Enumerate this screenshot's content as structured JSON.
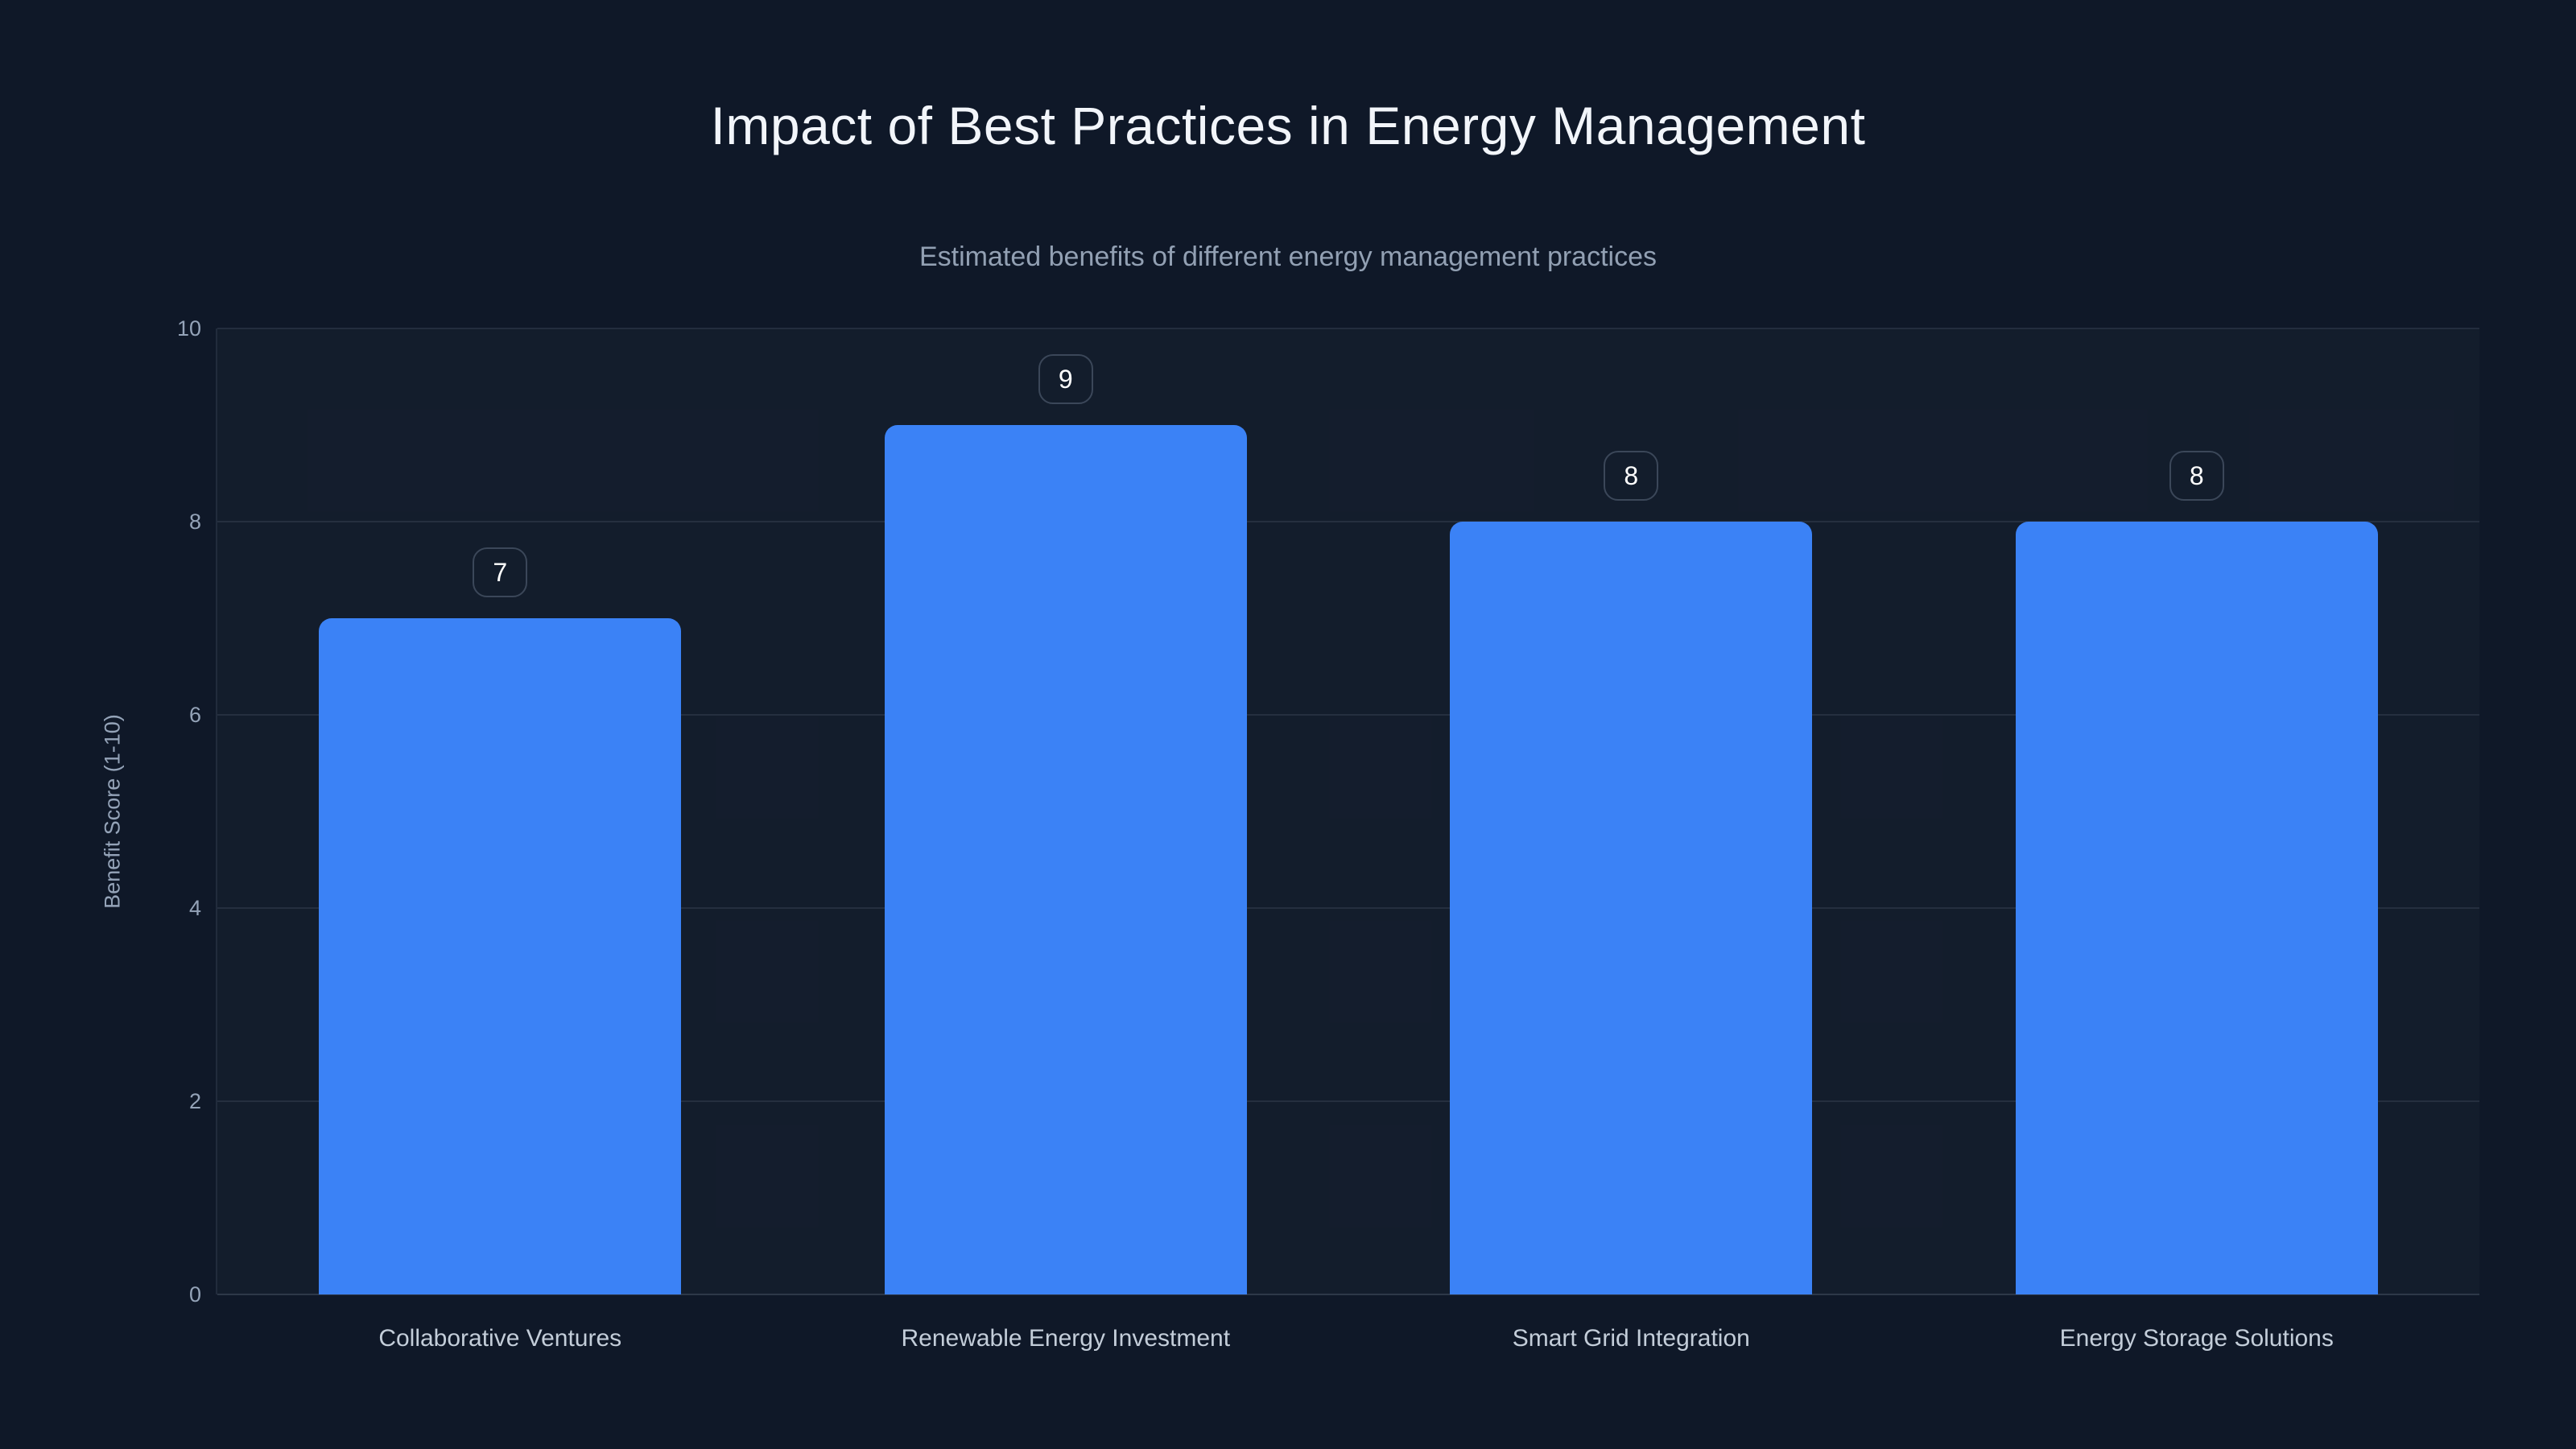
{
  "chart_data": {
    "type": "bar",
    "title": "Impact of Best Practices in Energy Management",
    "subtitle": "Estimated benefits of different energy management practices",
    "categories": [
      "Collaborative Ventures",
      "Renewable Energy Investment",
      "Smart Grid Integration",
      "Energy Storage Solutions"
    ],
    "values": [
      7,
      9,
      8,
      8
    ],
    "value_labels": [
      "7",
      "9",
      "8",
      "8"
    ],
    "xlabel": "",
    "ylabel": "Benefit Score (1-10)",
    "ylim": [
      0,
      10
    ],
    "yticks": [
      0,
      2,
      4,
      6,
      8,
      10
    ],
    "grid": true,
    "legend": "none",
    "colors": {
      "background": "#0f1828",
      "bar": "#3b82f6",
      "gridline": "rgba(148,163,184,0.14)",
      "axis_line": "rgba(148,163,184,0.22)",
      "plot_bg": "rgba(148,163,184,0.035)",
      "tick_label": "#94a3b8",
      "category_label": "#c3cdd9",
      "title": "#f2f5fa",
      "subtitle": "#92a0b3",
      "value_badge_border": "#3b4759",
      "value_badge_text": "#ffffff"
    }
  }
}
